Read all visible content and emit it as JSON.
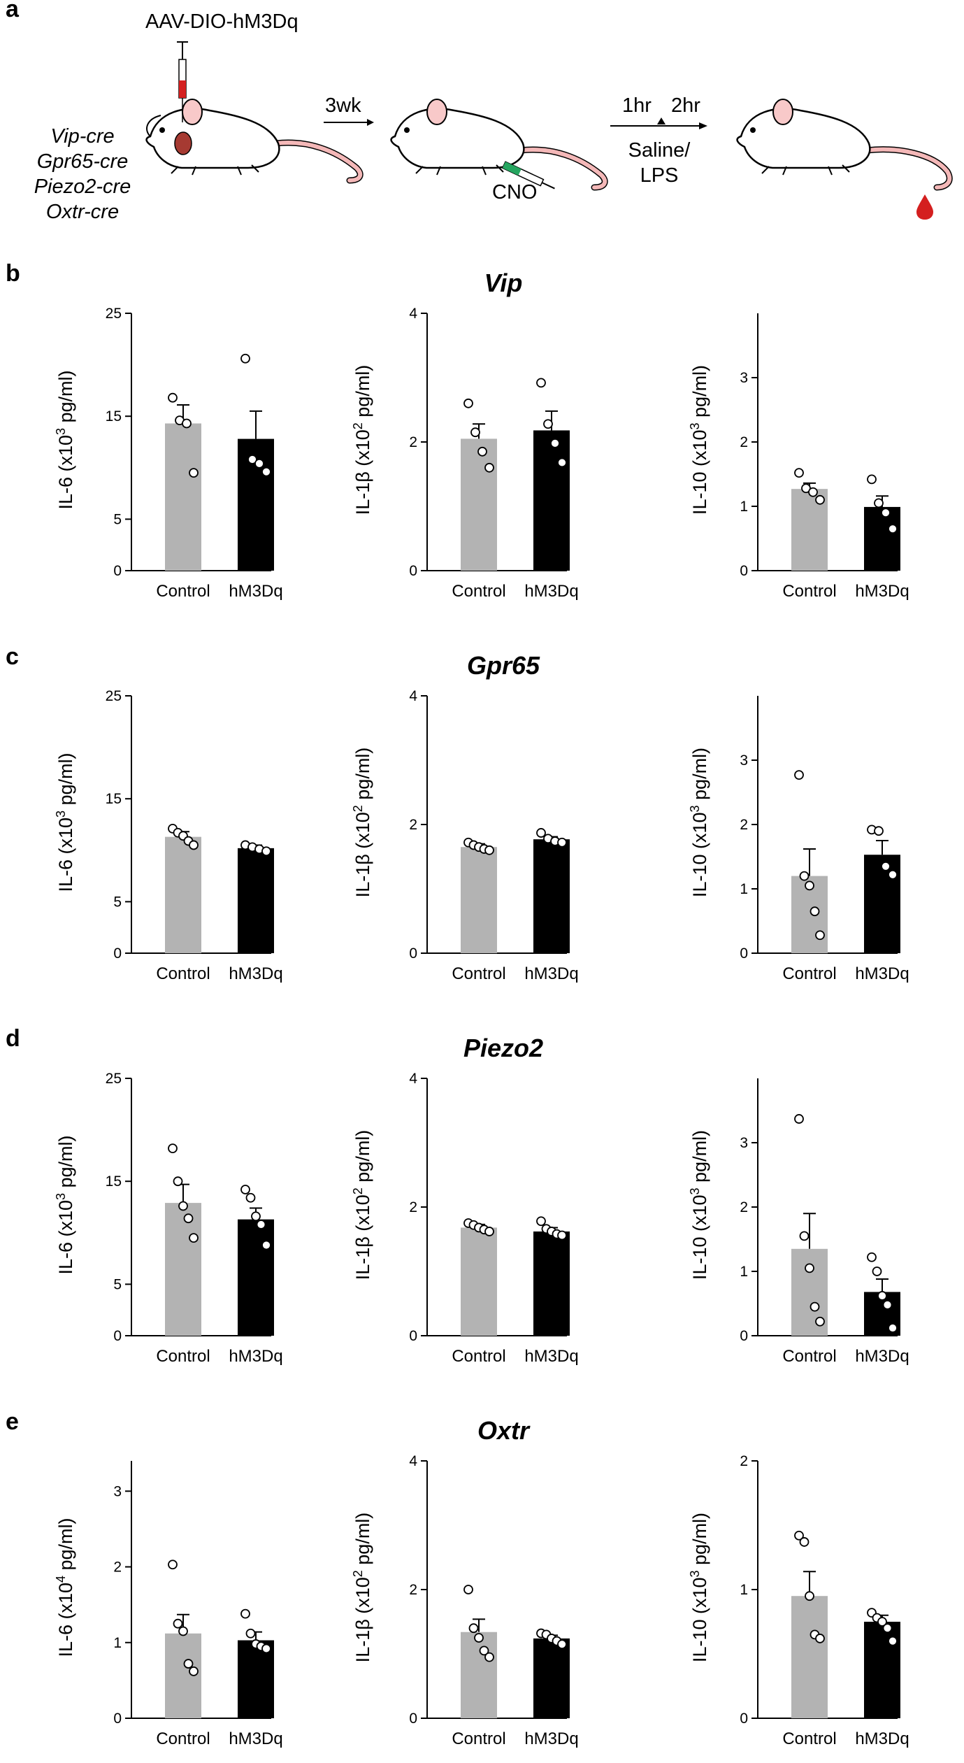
{
  "schematic": {
    "panel_label": "a",
    "virus": "AAV-DIO-hM3Dq",
    "cre_lines": [
      "Vip-cre",
      "Gpr65-cre",
      "Piezo2-cre",
      "Oxtr-cre"
    ],
    "wait": "3wk",
    "drug": "CNO",
    "time1": "1hr",
    "time2": "2hr",
    "treatment_line1": "Saline/",
    "treatment_line2": "LPS"
  },
  "colors": {
    "control": "#b3b3b3",
    "hm3dq": "#000000",
    "tail": "#f4b8b8",
    "ear": "#f8c9c9",
    "syringe_red": "#d42020",
    "syringe_green": "#25a55f",
    "blood": "#d41f1f"
  },
  "rows": [
    {
      "panel_label": "b",
      "title": "Vip",
      "charts": [
        {
          "ylabel": {
            "pre": "IL-6 (x10",
            "sup": "3",
            "post": " pg/ml)"
          }
        },
        {
          "ylabel": {
            "pre": "IL-1β (x10",
            "sup": "2",
            "post": " pg/ml)"
          }
        },
        {
          "ylabel": {
            "pre": "IL-10 (x10",
            "sup": "3",
            "post": " pg/ml)"
          }
        }
      ]
    },
    {
      "panel_label": "c",
      "title": "Gpr65",
      "charts": [
        {
          "ylabel": {
            "pre": "IL-6 (x10",
            "sup": "3",
            "post": " pg/ml)"
          }
        },
        {
          "ylabel": {
            "pre": "IL-1β (x10",
            "sup": "2",
            "post": " pg/ml)"
          }
        },
        {
          "ylabel": {
            "pre": "IL-10 (x10",
            "sup": "3",
            "post": " pg/ml)"
          }
        }
      ]
    },
    {
      "panel_label": "d",
      "title": "Piezo2",
      "charts": [
        {
          "ylabel": {
            "pre": "IL-6 (x10",
            "sup": "3",
            "post": " pg/ml)"
          }
        },
        {
          "ylabel": {
            "pre": "IL-1β (x10",
            "sup": "2",
            "post": " pg/ml)"
          }
        },
        {
          "ylabel": {
            "pre": "IL-10 (x10",
            "sup": "3",
            "post": " pg/ml)"
          }
        }
      ]
    },
    {
      "panel_label": "e",
      "title": "Oxtr",
      "charts": [
        {
          "ylabel": {
            "pre": "IL-6 (x10",
            "sup": "4",
            "post": " pg/ml)"
          }
        },
        {
          "ylabel": {
            "pre": "IL-1β (x10",
            "sup": "2",
            "post": " pg/ml)"
          }
        },
        {
          "ylabel": {
            "pre": "IL-10 (x10",
            "sup": "3",
            "post": " pg/ml)"
          }
        }
      ]
    }
  ],
  "chart_data": [
    {
      "type": "bar",
      "panel": "b",
      "title": "Vip",
      "ylabel": "IL-6 (x10^3 pg/ml)",
      "categories": [
        "Control",
        "hM3Dq"
      ],
      "ylim": [
        0,
        25
      ],
      "yticks": [
        0,
        5,
        15,
        25
      ],
      "series": [
        {
          "name": "Control",
          "mean": 14.3,
          "sem": 1.8,
          "points": [
            16.8,
            14.6,
            14.3,
            9.5
          ]
        },
        {
          "name": "hM3Dq",
          "mean": 12.8,
          "sem": 2.7,
          "points": [
            20.6,
            10.8,
            10.4,
            9.6
          ]
        }
      ]
    },
    {
      "type": "bar",
      "panel": "b",
      "title": "Vip",
      "ylabel": "IL-1β (x10^2 pg/ml)",
      "categories": [
        "Control",
        "hM3Dq"
      ],
      "ylim": [
        0,
        4
      ],
      "yticks": [
        0,
        2,
        4
      ],
      "series": [
        {
          "name": "Control",
          "mean": 2.05,
          "sem": 0.23,
          "points": [
            2.6,
            2.15,
            1.85,
            1.6
          ]
        },
        {
          "name": "hM3Dq",
          "mean": 2.18,
          "sem": 0.3,
          "points": [
            2.92,
            2.28,
            1.98,
            1.68
          ]
        }
      ]
    },
    {
      "type": "bar",
      "panel": "b",
      "title": "Vip",
      "ylabel": "IL-10 (x10^3 pg/ml)",
      "categories": [
        "Control",
        "hM3Dq"
      ],
      "ylim": [
        0,
        4
      ],
      "yticks": [
        0,
        1,
        2,
        3
      ],
      "series": [
        {
          "name": "Control",
          "mean": 1.27,
          "sem": 0.09,
          "points": [
            1.52,
            1.28,
            1.22,
            1.1
          ]
        },
        {
          "name": "hM3Dq",
          "mean": 0.99,
          "sem": 0.17,
          "points": [
            1.42,
            1.05,
            0.9,
            0.65
          ]
        }
      ]
    },
    {
      "type": "bar",
      "panel": "c",
      "title": "Gpr65",
      "ylabel": "IL-6 (x10^3 pg/ml)",
      "categories": [
        "Control",
        "hM3Dq"
      ],
      "ylim": [
        0,
        25
      ],
      "yticks": [
        0,
        5,
        15,
        25
      ],
      "series": [
        {
          "name": "Control",
          "mean": 11.3,
          "sem": 0.5,
          "points": [
            12.1,
            11.7,
            11.4,
            10.9,
            10.5
          ]
        },
        {
          "name": "hM3Dq",
          "mean": 10.2,
          "sem": 0.3,
          "points": [
            10.5,
            10.3,
            10.1,
            9.9
          ]
        }
      ]
    },
    {
      "type": "bar",
      "panel": "c",
      "title": "Gpr65",
      "ylabel": "IL-1β (x10^2 pg/ml)",
      "categories": [
        "Control",
        "hM3Dq"
      ],
      "ylim": [
        0,
        4
      ],
      "yticks": [
        0,
        2,
        4
      ],
      "series": [
        {
          "name": "Control",
          "mean": 1.65,
          "sem": 0.05,
          "points": [
            1.72,
            1.68,
            1.65,
            1.62,
            1.6
          ]
        },
        {
          "name": "hM3Dq",
          "mean": 1.77,
          "sem": 0.04,
          "points": [
            1.87,
            1.78,
            1.74,
            1.72
          ]
        }
      ]
    },
    {
      "type": "bar",
      "panel": "c",
      "title": "Gpr65",
      "ylabel": "IL-10 (x10^3 pg/ml)",
      "categories": [
        "Control",
        "hM3Dq"
      ],
      "ylim": [
        0,
        4
      ],
      "yticks": [
        0,
        1,
        2,
        3
      ],
      "series": [
        {
          "name": "Control",
          "mean": 1.2,
          "sem": 0.42,
          "points": [
            2.77,
            1.2,
            1.05,
            0.65,
            0.28
          ]
        },
        {
          "name": "hM3Dq",
          "mean": 1.53,
          "sem": 0.22,
          "points": [
            1.92,
            1.9,
            1.35,
            1.22
          ]
        }
      ]
    },
    {
      "type": "bar",
      "panel": "d",
      "title": "Piezo2",
      "ylabel": "IL-6 (x10^3 pg/ml)",
      "categories": [
        "Control",
        "hM3Dq"
      ],
      "ylim": [
        0,
        25
      ],
      "yticks": [
        0,
        5,
        15,
        25
      ],
      "series": [
        {
          "name": "Control",
          "mean": 12.9,
          "sem": 1.8,
          "points": [
            18.2,
            15.0,
            12.6,
            11.4,
            9.5
          ]
        },
        {
          "name": "hM3Dq",
          "mean": 11.3,
          "sem": 1.1,
          "points": [
            14.2,
            13.4,
            11.6,
            10.8,
            8.8
          ]
        }
      ]
    },
    {
      "type": "bar",
      "panel": "d",
      "title": "Piezo2",
      "ylabel": "IL-1β (x10^2 pg/ml)",
      "categories": [
        "Control",
        "hM3Dq"
      ],
      "ylim": [
        0,
        4
      ],
      "yticks": [
        0,
        2,
        4
      ],
      "series": [
        {
          "name": "Control",
          "mean": 1.68,
          "sem": 0.05,
          "points": [
            1.75,
            1.72,
            1.68,
            1.65,
            1.62
          ]
        },
        {
          "name": "hM3Dq",
          "mean": 1.62,
          "sem": 0.06,
          "points": [
            1.78,
            1.66,
            1.62,
            1.58,
            1.56
          ]
        }
      ]
    },
    {
      "type": "bar",
      "panel": "d",
      "title": "Piezo2",
      "ylabel": "IL-10 (x10^3 pg/ml)",
      "categories": [
        "Control",
        "hM3Dq"
      ],
      "ylim": [
        0,
        4
      ],
      "yticks": [
        0,
        1,
        2,
        3
      ],
      "series": [
        {
          "name": "Control",
          "mean": 1.35,
          "sem": 0.55,
          "points": [
            3.37,
            1.55,
            1.05,
            0.45,
            0.22
          ]
        },
        {
          "name": "hM3Dq",
          "mean": 0.68,
          "sem": 0.2,
          "points": [
            1.22,
            1.0,
            0.62,
            0.48,
            0.12
          ]
        }
      ]
    },
    {
      "type": "bar",
      "panel": "e",
      "title": "Oxtr",
      "ylabel": "IL-6 (x10^4 pg/ml)",
      "categories": [
        "Control",
        "hM3Dq"
      ],
      "ylim": [
        0,
        3.4
      ],
      "yticks": [
        0,
        1,
        2,
        3
      ],
      "series": [
        {
          "name": "Control",
          "mean": 1.12,
          "sem": 0.25,
          "points": [
            2.03,
            1.25,
            1.15,
            0.72,
            0.62
          ]
        },
        {
          "name": "hM3Dq",
          "mean": 1.03,
          "sem": 0.11,
          "points": [
            1.38,
            1.12,
            0.98,
            0.95,
            0.92
          ]
        }
      ]
    },
    {
      "type": "bar",
      "panel": "e",
      "title": "Oxtr",
      "ylabel": "IL-1β (x10^2 pg/ml)",
      "categories": [
        "Control",
        "hM3Dq"
      ],
      "ylim": [
        0,
        4
      ],
      "yticks": [
        0,
        2,
        4
      ],
      "series": [
        {
          "name": "Control",
          "mean": 1.34,
          "sem": 0.2,
          "points": [
            2.0,
            1.4,
            1.25,
            1.05,
            0.95
          ]
        },
        {
          "name": "hM3Dq",
          "mean": 1.24,
          "sem": 0.05,
          "points": [
            1.32,
            1.3,
            1.24,
            1.2,
            1.15
          ]
        }
      ]
    },
    {
      "type": "bar",
      "panel": "e",
      "title": "Oxtr",
      "ylabel": "IL-10 (x10^3 pg/ml)",
      "categories": [
        "Control",
        "hM3Dq"
      ],
      "ylim": [
        0,
        2
      ],
      "yticks": [
        0,
        1,
        2
      ],
      "series": [
        {
          "name": "Control",
          "mean": 0.95,
          "sem": 0.19,
          "points": [
            1.42,
            1.37,
            0.95,
            0.65,
            0.62
          ]
        },
        {
          "name": "hM3Dq",
          "mean": 0.75,
          "sem": 0.05,
          "points": [
            0.82,
            0.78,
            0.75,
            0.7,
            0.6
          ]
        }
      ]
    }
  ]
}
